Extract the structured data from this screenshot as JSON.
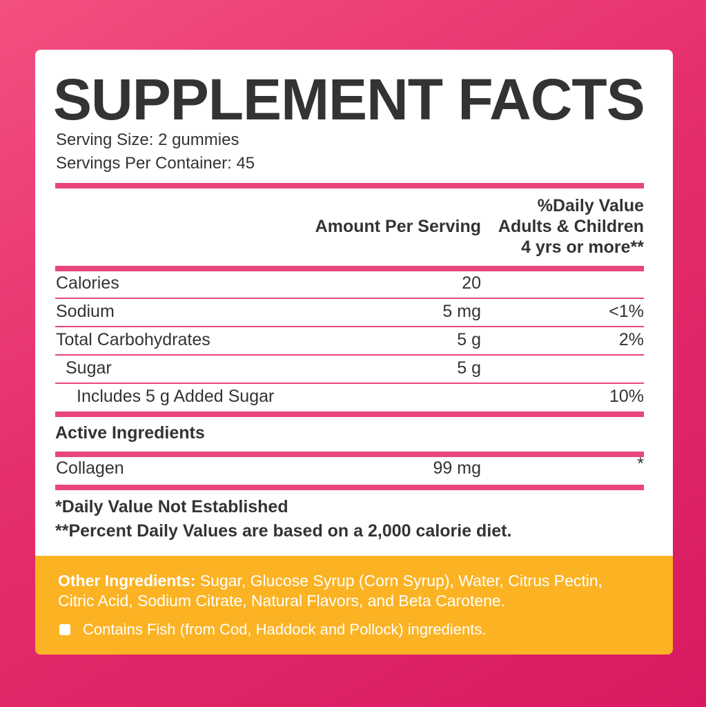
{
  "title": "SUPPLEMENT FACTS",
  "serving_size": "Serving Size: 2 gummies",
  "servings_per_container": "Servings Per Container: 45",
  "table": {
    "header": {
      "amount": "Amount Per Serving",
      "daily_value": [
        "%Daily Value",
        "Adults & Children",
        "4 yrs or more**"
      ]
    },
    "rows": [
      {
        "name": "Calories",
        "amount": "20"
      },
      {
        "name": "Sodium",
        "amount": "5 mg",
        "dv": "<1%"
      },
      {
        "name": "Total Carbohydrates",
        "amount": "5 g",
        "dv": "2%"
      },
      {
        "name": "Sugar",
        "amount": "5 g"
      },
      {
        "name": "Includes 5 g Added Sugar",
        "dv": "10%"
      }
    ],
    "active_heading": "Active Ingredients",
    "active_rows": [
      {
        "name": "Collagen",
        "amount": "99 mg",
        "dv": "*"
      }
    ]
  },
  "footnotes": [
    "*Daily Value Not Established",
    "**Percent Daily Values are based on a 2,000 calorie diet."
  ],
  "other_ingredients": {
    "label": "Other Ingredients:",
    "text": "Sugar, Glucose Syrup (Corn Syrup), Water, Citrus Pectin, Citric Acid, Sodium Citrate, Natural Flavors, and Beta Carotene."
  },
  "allergen": "Contains Fish (from Cod, Haddock and Pollock) ingredients."
}
